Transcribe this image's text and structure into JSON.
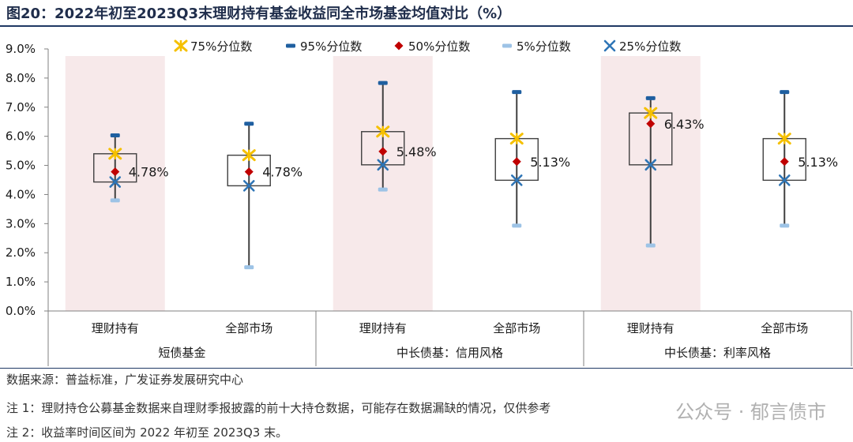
{
  "title": "图20：2022年初至2023Q3末理财持有基金收益同全市场基金均值对比（%）",
  "notes": {
    "source": "数据来源：普益标准，广发证券发展研究中心",
    "note1": "注 1：理财持仓公募基金数据来自理财季报披露的前十大持仓数据，可能存在数据漏缺的情况，仅供参考",
    "note2": "注 2：收益率时间区间为 2022 年初至 2023Q3 末。"
  },
  "watermark": "公众号 · 郁言债市",
  "colors": {
    "p75": "#f5c000",
    "p95": "#1f5fa0",
    "p50": "#c00000",
    "p5": "#9dc3e6",
    "p25": "#2e75b6",
    "highlight": "#f7e9ea",
    "box": "#404040"
  },
  "chart_data": {
    "type": "boxplot",
    "ylim": [
      0,
      9
    ],
    "yticks": [
      "0.0%",
      "1.0%",
      "2.0%",
      "3.0%",
      "4.0%",
      "5.0%",
      "6.0%",
      "7.0%",
      "8.0%",
      "9.0%"
    ],
    "legend": {
      "p75": "75%分位数",
      "p95": "95%分位数",
      "p50": "50%分位数",
      "p5": "5%分位数",
      "p25": "25%分位数"
    },
    "groups": [
      "短债基金",
      "中长债基：信用风格",
      "中长债基：利率风格"
    ],
    "categories": [
      {
        "group": 0,
        "label": "理财持有",
        "highlight": true,
        "p5": 3.8,
        "p25": 4.43,
        "p50": 4.78,
        "p75": 5.4,
        "p95": 6.03,
        "label_value": "4.78%"
      },
      {
        "group": 0,
        "label": "全部市场",
        "highlight": false,
        "p5": 1.5,
        "p25": 4.3,
        "p50": 4.78,
        "p75": 5.35,
        "p95": 6.43,
        "label_value": "4.78%"
      },
      {
        "group": 1,
        "label": "理财持有",
        "highlight": true,
        "p5": 4.17,
        "p25": 5.02,
        "p50": 5.48,
        "p75": 6.16,
        "p95": 7.83,
        "label_value": "5.48%"
      },
      {
        "group": 1,
        "label": "全部市场",
        "highlight": false,
        "p5": 2.93,
        "p25": 4.49,
        "p50": 5.13,
        "p75": 5.92,
        "p95": 7.52,
        "label_value": "5.13%"
      },
      {
        "group": 2,
        "label": "理财持有",
        "highlight": true,
        "p5": 2.25,
        "p25": 5.02,
        "p50": 6.43,
        "p75": 6.8,
        "p95": 7.31,
        "label_value": "6.43%"
      },
      {
        "group": 2,
        "label": "全部市场",
        "highlight": false,
        "p5": 2.93,
        "p25": 4.49,
        "p50": 5.13,
        "p75": 5.92,
        "p95": 7.52,
        "label_value": "5.13%"
      }
    ]
  }
}
